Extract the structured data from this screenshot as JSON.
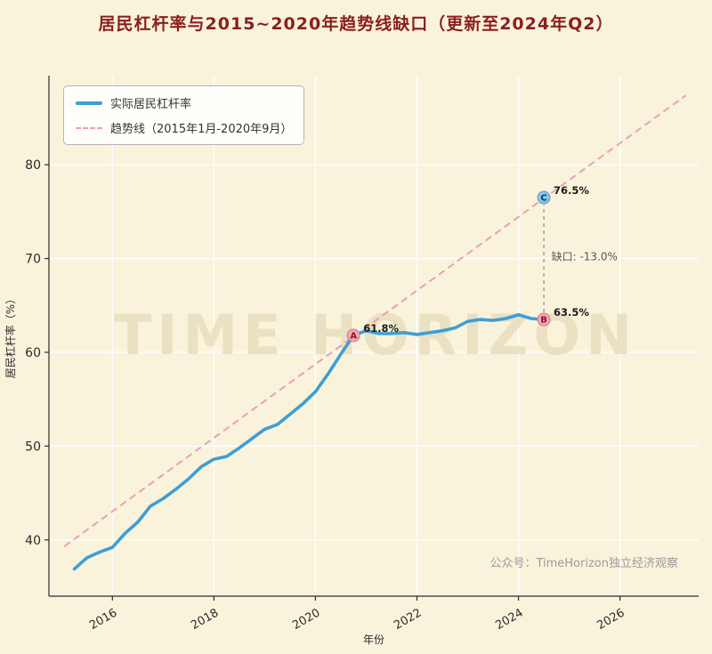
{
  "page": {
    "title": "居民杠杆率与2015~2020年趋势线缺口（更新至2024年Q2）",
    "watermark": "TIME HORIZON",
    "source": "公众号：TimeHorizon独立经济观察"
  },
  "colors": {
    "background": "#faf3dc",
    "title": "#8b1f1f",
    "actual_line": "#3d9fd4",
    "trend_line": "#e8a0b5",
    "annotation_pink": "#f2a6ba",
    "annotation_pink_edge": "#d2798f",
    "annotation_blue": "#85c6ea",
    "annotation_blue_edge": "#5a9cc0",
    "annotation_letter_pink": "#8b1a1a",
    "annotation_letter_blue": "#17344f",
    "value_label": "#1a1a1a",
    "gap_text": "#555555",
    "connector": "#8a8a8a",
    "grid": "#ffffff",
    "axis": "#2b2b2b",
    "watermark": "#eae0c2",
    "source_text": "#9a9a9a"
  },
  "chart_data": {
    "type": "line",
    "title": "居民杠杆率与2015~2020年趋势线缺口（更新至2024年Q2）",
    "xlabel": "年份",
    "ylabel": "居民杠杆率（%）",
    "xlim": [
      2014.75,
      2027.55
    ],
    "ylim": [
      34.0,
      89.5
    ],
    "x_ticks": [
      "2016",
      "2018",
      "2020",
      "2022",
      "2024",
      "2026"
    ],
    "x_tick_values": [
      2016,
      2018,
      2020,
      2022,
      2024,
      2026
    ],
    "y_ticks": [
      "40",
      "50",
      "60",
      "70",
      "80"
    ],
    "y_tick_values": [
      40,
      50,
      60,
      70,
      80
    ],
    "grid": true,
    "legend_position": "upper-left",
    "series": [
      {
        "name": "实际居民杠杆率",
        "style": "solid",
        "x": [
          2015.25,
          2015.5,
          2015.75,
          2016.0,
          2016.25,
          2016.5,
          2016.75,
          2017.0,
          2017.25,
          2017.5,
          2017.75,
          2018.0,
          2018.25,
          2018.5,
          2018.75,
          2019.0,
          2019.25,
          2019.5,
          2019.75,
          2020.0,
          2020.25,
          2020.5,
          2020.75,
          2021.0,
          2021.25,
          2021.5,
          2021.75,
          2022.0,
          2022.25,
          2022.5,
          2022.75,
          2023.0,
          2023.25,
          2023.5,
          2023.75,
          2024.0,
          2024.25,
          2024.5
        ],
        "y": [
          36.9,
          38.1,
          38.7,
          39.2,
          40.7,
          41.9,
          43.6,
          44.4,
          45.4,
          46.5,
          47.8,
          48.6,
          48.9,
          49.8,
          50.8,
          51.8,
          52.3,
          53.4,
          54.5,
          55.8,
          57.7,
          59.8,
          61.8,
          62.3,
          62.0,
          62.0,
          62.1,
          61.9,
          62.1,
          62.3,
          62.6,
          63.3,
          63.5,
          63.4,
          63.6,
          64.0,
          63.6,
          63.5
        ]
      },
      {
        "name": "趋势线（2015年1月-2020年9月）",
        "style": "dashed",
        "x": [
          2015.05,
          2027.3
        ],
        "y": [
          39.3,
          87.4
        ]
      }
    ],
    "annotations": {
      "points": [
        {
          "id": "A",
          "x": 2020.75,
          "y": 61.8,
          "label": "61.8%",
          "fill": "pink"
        },
        {
          "id": "B",
          "x": 2024.5,
          "y": 63.5,
          "label": "63.5%",
          "fill": "pink"
        },
        {
          "id": "C",
          "x": 2024.5,
          "y": 76.5,
          "label": "76.5%",
          "fill": "blue"
        }
      ],
      "gap": {
        "label": "缺口: -13.0%",
        "x": 2024.65,
        "y": 69.8,
        "from": "B",
        "to": "C"
      }
    }
  }
}
